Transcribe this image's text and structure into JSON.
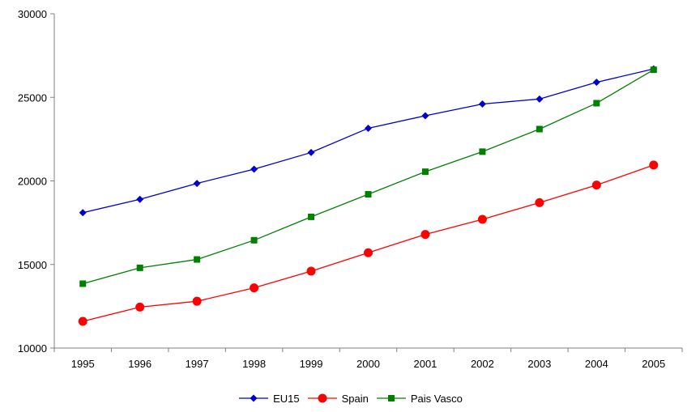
{
  "chart_data": {
    "type": "line",
    "title": "",
    "xlabel": "",
    "ylabel": "",
    "categories": [
      "1995",
      "1996",
      "1997",
      "1998",
      "1999",
      "2000",
      "2001",
      "2002",
      "2003",
      "2004",
      "2005"
    ],
    "ylim": [
      10000,
      30000
    ],
    "yticks": [
      10000,
      15000,
      20000,
      25000,
      30000
    ],
    "grid": false,
    "legend_position": "bottom",
    "series": [
      {
        "name": "EU15",
        "color": "#0000CC",
        "marker": "diamond",
        "values": [
          18100,
          18900,
          19850,
          20700,
          21700,
          23150,
          23900,
          24600,
          24900,
          25900,
          26700
        ]
      },
      {
        "name": "Spain",
        "color": "#FF0000",
        "marker": "circle",
        "values": [
          11600,
          12450,
          12800,
          13600,
          14600,
          15700,
          16800,
          17700,
          18700,
          19750,
          20950
        ]
      },
      {
        "name": "Pais Vasco",
        "color": "#008000",
        "marker": "square",
        "values": [
          13850,
          14800,
          15300,
          16450,
          17850,
          19200,
          20550,
          21750,
          23100,
          24650,
          26650
        ]
      }
    ]
  }
}
